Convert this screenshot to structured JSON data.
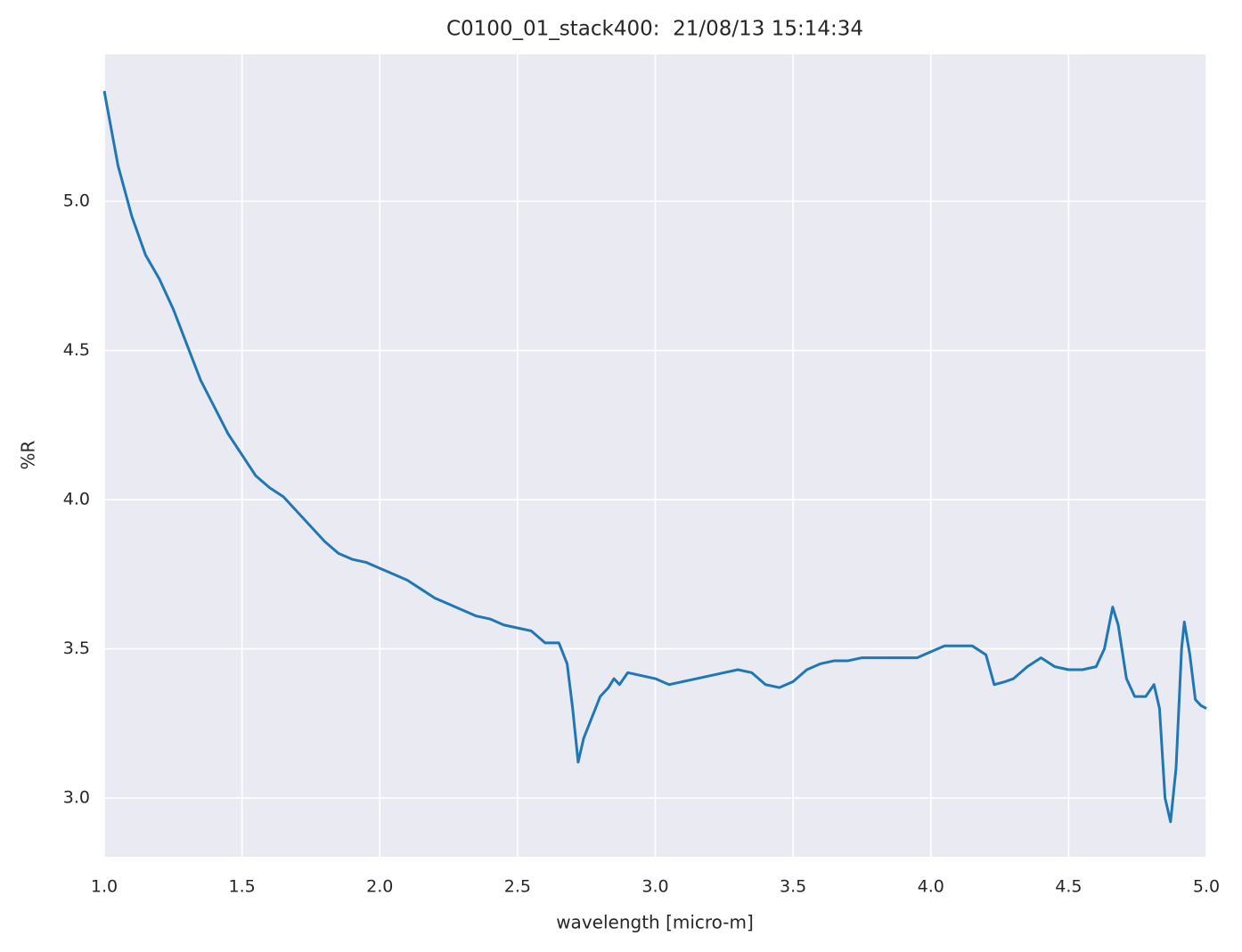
{
  "chart_data": {
    "type": "line",
    "title": "C0100_01_stack400:  21/08/13 15:14:34",
    "x_label": "wavelength [micro-m]",
    "y_label": "%R",
    "x": [
      1.0,
      1.02,
      1.05,
      1.1,
      1.15,
      1.2,
      1.25,
      1.3,
      1.35,
      1.4,
      1.45,
      1.5,
      1.55,
      1.6,
      1.65,
      1.7,
      1.75,
      1.8,
      1.85,
      1.9,
      1.95,
      2.0,
      2.05,
      2.1,
      2.15,
      2.2,
      2.25,
      2.3,
      2.35,
      2.4,
      2.45,
      2.5,
      2.55,
      2.6,
      2.65,
      2.68,
      2.7,
      2.72,
      2.74,
      2.77,
      2.8,
      2.83,
      2.85,
      2.87,
      2.9,
      2.95,
      3.0,
      3.05,
      3.1,
      3.15,
      3.2,
      3.25,
      3.3,
      3.35,
      3.4,
      3.45,
      3.5,
      3.55,
      3.6,
      3.65,
      3.7,
      3.75,
      3.8,
      3.85,
      3.9,
      3.95,
      4.0,
      4.05,
      4.1,
      4.15,
      4.2,
      4.23,
      4.27,
      4.3,
      4.35,
      4.4,
      4.45,
      4.5,
      4.55,
      4.6,
      4.63,
      4.66,
      4.68,
      4.71,
      4.74,
      4.78,
      4.81,
      4.83,
      4.85,
      4.87,
      4.89,
      4.91,
      4.92,
      4.94,
      4.96,
      4.98,
      5.0
    ],
    "series": [
      {
        "name": "%R",
        "color": "#1f77b4",
        "values": [
          5.37,
          5.27,
          5.12,
          4.95,
          4.82,
          4.74,
          4.64,
          4.52,
          4.4,
          4.31,
          4.22,
          4.15,
          4.08,
          4.04,
          4.01,
          3.96,
          3.91,
          3.86,
          3.82,
          3.8,
          3.79,
          3.77,
          3.75,
          3.73,
          3.7,
          3.67,
          3.65,
          3.63,
          3.61,
          3.6,
          3.58,
          3.57,
          3.56,
          3.52,
          3.52,
          3.45,
          3.3,
          3.12,
          3.2,
          3.27,
          3.34,
          3.37,
          3.4,
          3.38,
          3.42,
          3.41,
          3.4,
          3.38,
          3.39,
          3.4,
          3.41,
          3.42,
          3.43,
          3.42,
          3.38,
          3.37,
          3.39,
          3.43,
          3.45,
          3.46,
          3.46,
          3.47,
          3.47,
          3.47,
          3.47,
          3.47,
          3.49,
          3.51,
          3.51,
          3.51,
          3.48,
          3.38,
          3.39,
          3.4,
          3.44,
          3.47,
          3.44,
          3.43,
          3.43,
          3.44,
          3.5,
          3.64,
          3.58,
          3.4,
          3.34,
          3.34,
          3.38,
          3.3,
          3.0,
          2.92,
          3.1,
          3.5,
          3.59,
          3.48,
          3.33,
          3.31,
          3.3
        ]
      }
    ],
    "xlim": [
      1,
      5
    ],
    "ylim": [
      2.803,
      5.493
    ],
    "xticks": [
      {
        "value": 1,
        "label": "1.0"
      },
      1.5,
      {
        "value": 2,
        "label": "2.0"
      },
      2.5,
      {
        "value": 3,
        "label": "3.0"
      },
      3.5,
      {
        "value": 4,
        "label": "4.0"
      },
      4.5,
      {
        "value": 5,
        "label": "5.0"
      }
    ],
    "yticks": [
      {
        "value": 3,
        "label": "3.0"
      },
      3.5,
      {
        "value": 4,
        "label": "4.0"
      },
      4.5,
      {
        "value": 5,
        "label": "5.0"
      }
    ],
    "grid": true,
    "background": "#eaeaf2"
  }
}
